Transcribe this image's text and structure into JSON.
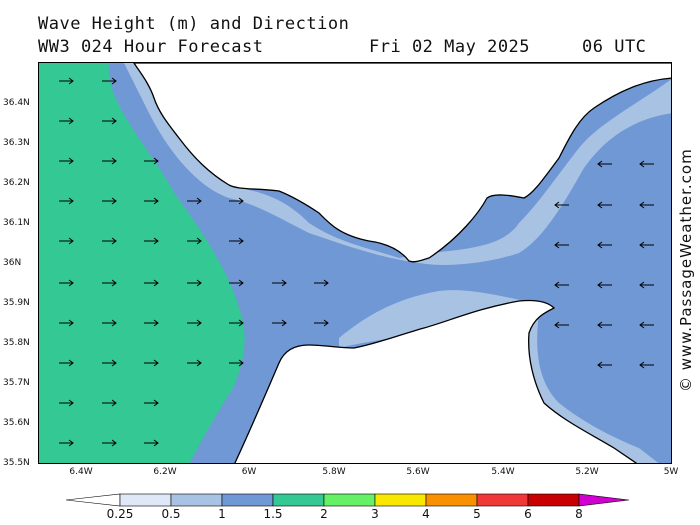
{
  "header": {
    "title": "Wave Height (m) and Direction",
    "model": "WW3 024 Hour Forecast",
    "date": "Fri 02 May 2025",
    "time": "06 UTC"
  },
  "credit": "© www.PassageWeather.com",
  "axes": {
    "lat_labels": [
      "36.4N",
      "36.3N",
      "36.2N",
      "36.1N",
      "36N",
      "35.9N",
      "35.8N",
      "35.7N",
      "35.6N",
      "35.5N"
    ],
    "lon_labels": [
      "6.4W",
      "6.2W",
      "6W",
      "5.8W",
      "5.6W",
      "5.4W",
      "5.2W",
      "5W"
    ]
  },
  "legend": {
    "labels": [
      "0.25",
      "0.5",
      "1",
      "1.5",
      "2",
      "3",
      "4",
      "5",
      "6",
      "8"
    ],
    "colors": [
      "#ffffff",
      "#dfe8f6",
      "#a8c2e4",
      "#6f98d4",
      "#34c894",
      "#66f066",
      "#f8e800",
      "#f89000",
      "#f03838",
      "#c80000",
      "#d000d0"
    ]
  },
  "colors": {
    "land": "#ffffff",
    "wave_0_5_1": "#a8c2e4",
    "wave_1_1_5": "#6f98d4",
    "wave_1_5_2": "#34c894",
    "wave_0_25_0_5": "#dfe8f6"
  },
  "arrow_direction": {
    "west_region": "east",
    "east_region": "west"
  }
}
